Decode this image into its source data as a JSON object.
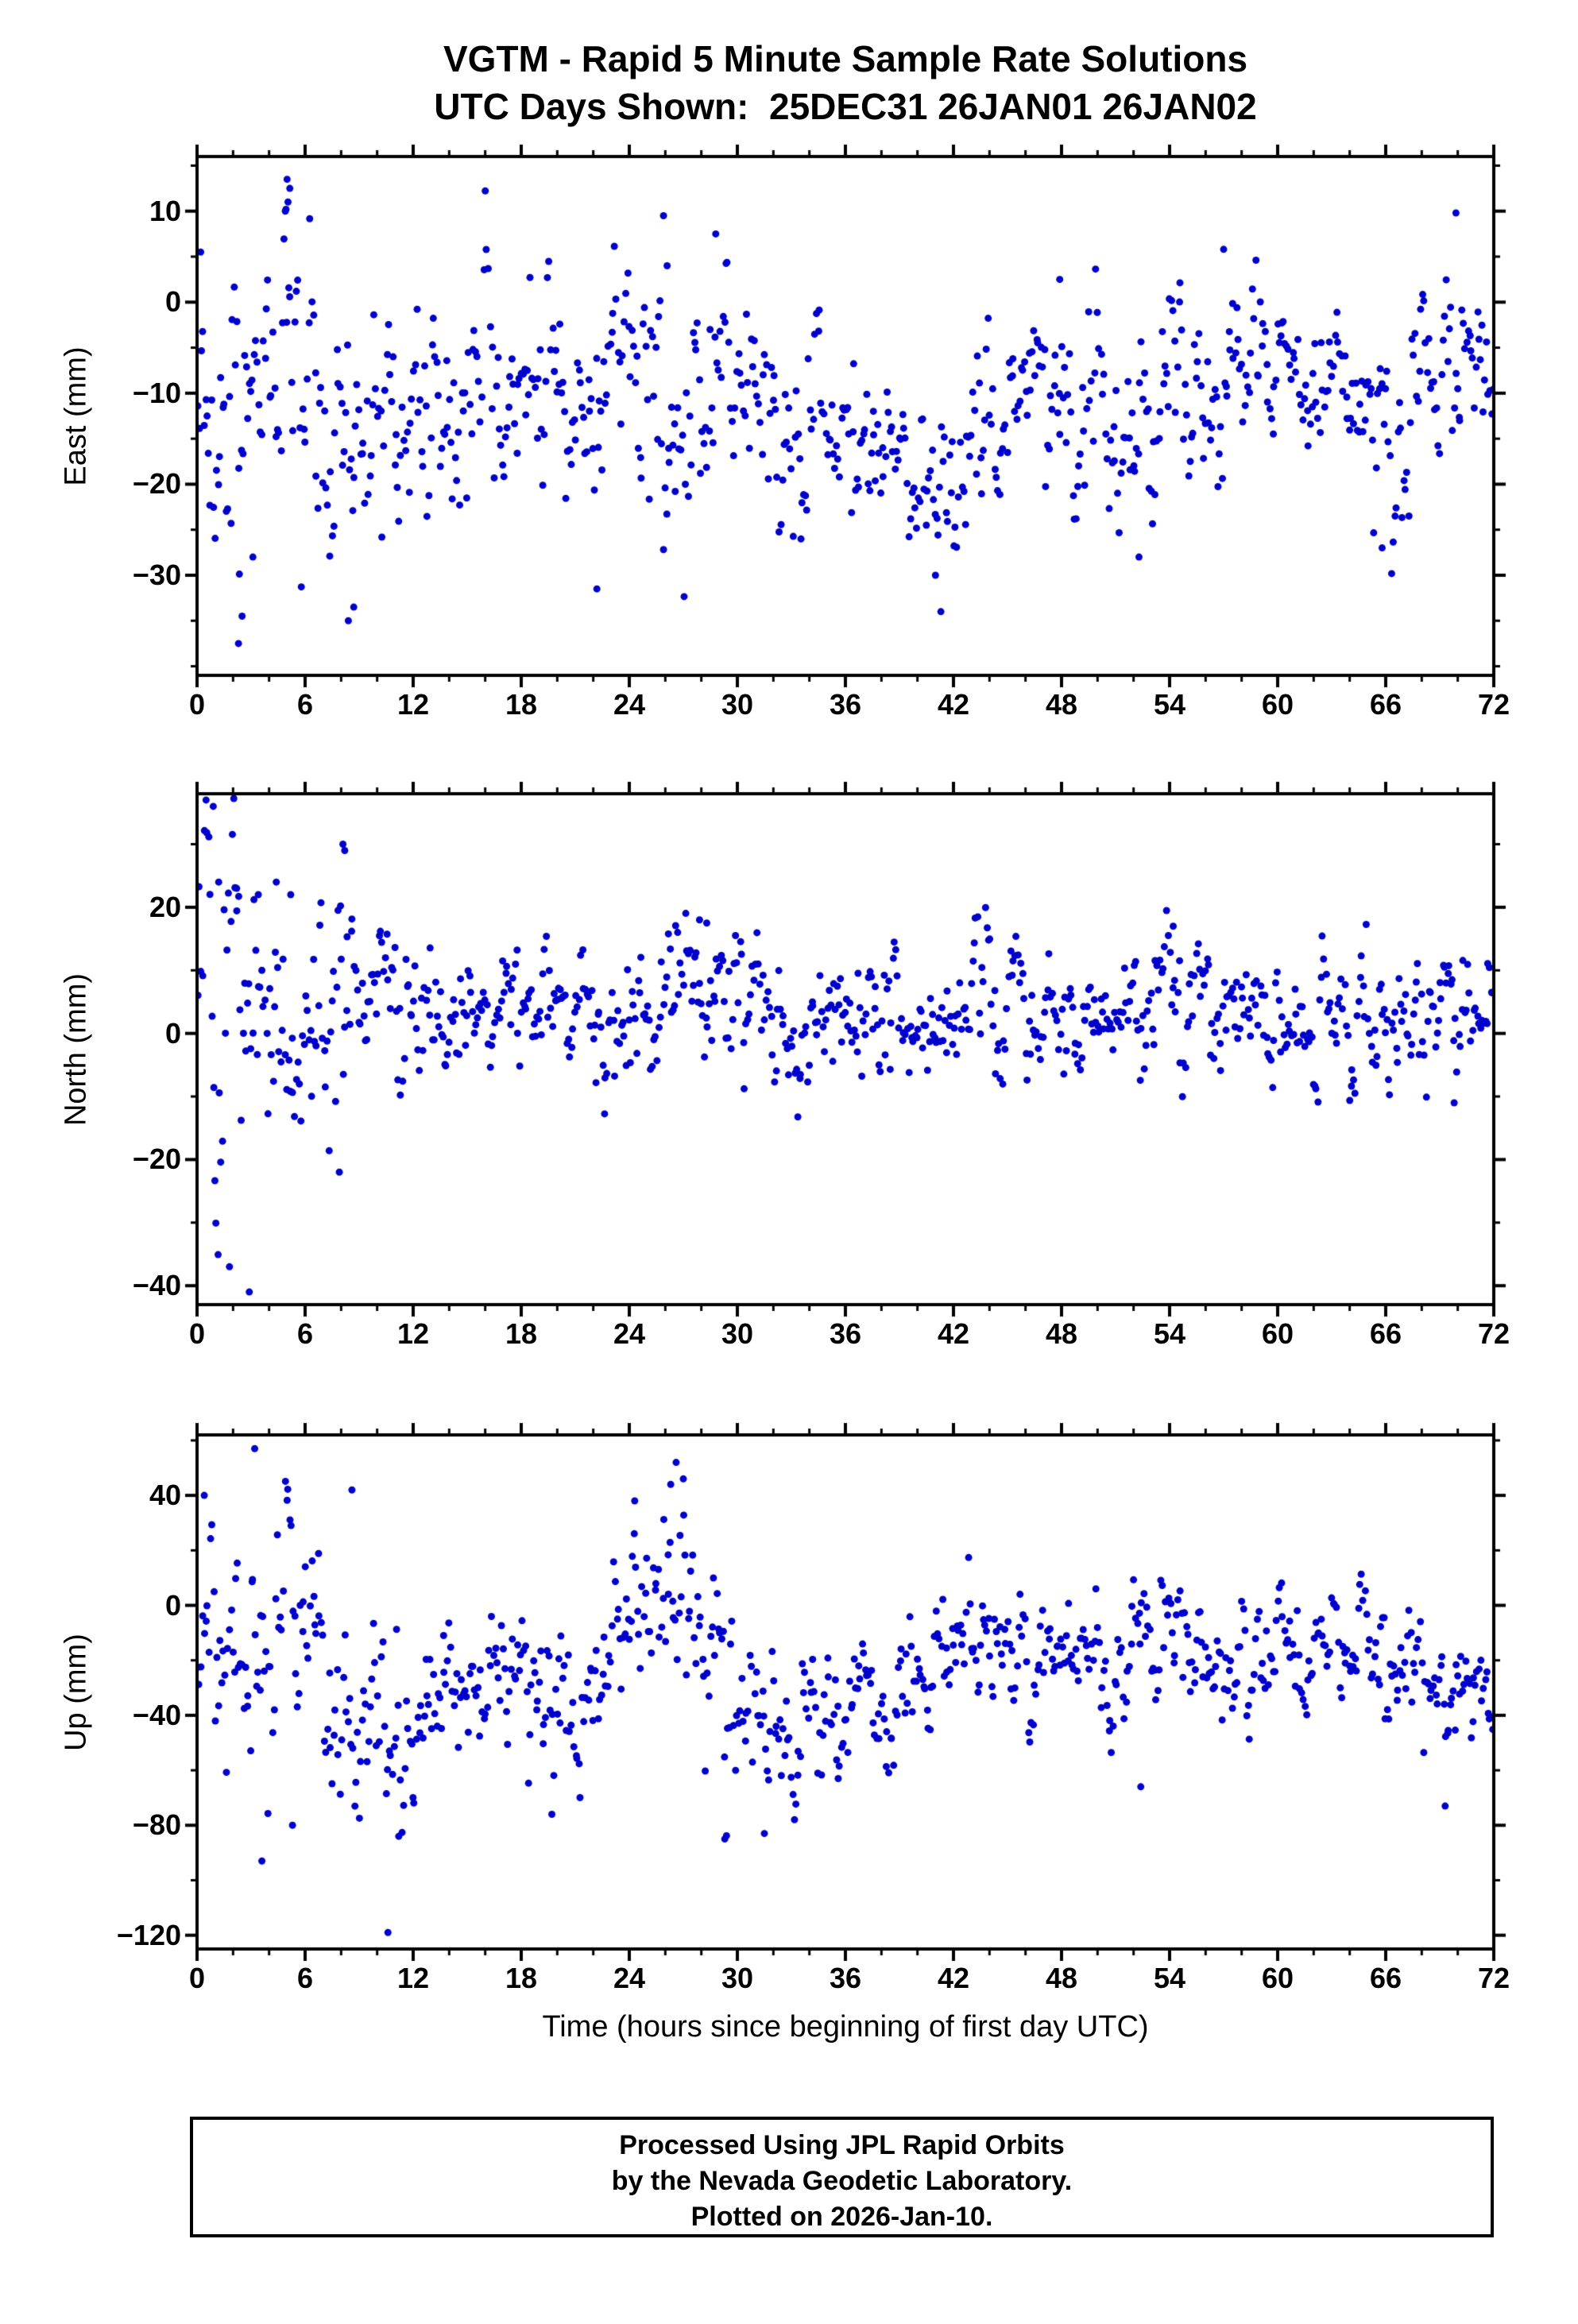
{
  "title": {
    "line1": "VGTM - Rapid 5 Minute Sample Rate Solutions",
    "line2": "UTC Days Shown:  25DEC31 26JAN01 26JAN02"
  },
  "x_axis": {
    "label": "Time (hours since beginning of first day UTC)",
    "ticks": [
      0,
      6,
      12,
      18,
      24,
      30,
      36,
      42,
      48,
      54,
      60,
      66,
      72
    ],
    "minor_step": 2,
    "range": [
      0,
      72
    ]
  },
  "marker": {
    "color": "#0000cc",
    "radius": 4.5
  },
  "footer": {
    "lines": [
      "Processed Using JPL Rapid Orbits",
      "by the Nevada Geodetic Laboratory.",
      "Plotted on 2026-Jan-10."
    ]
  },
  "chart_data": [
    {
      "type": "scatter",
      "ylabel": "East (mm)",
      "ylim": [
        -41,
        16
      ],
      "yticks": [
        10,
        0,
        -10,
        -20,
        -30
      ],
      "minor_step": 5,
      "n": 830,
      "seed": 11,
      "trend": {
        "x": [
          0,
          1.5,
          3,
          4.5,
          6,
          8,
          10,
          13,
          16,
          19,
          22,
          24.5,
          26,
          28,
          30,
          32,
          34,
          36,
          38,
          40,
          41.5,
          43,
          45,
          47,
          49,
          51,
          53,
          55,
          57,
          59,
          61,
          63,
          65,
          66.5,
          68,
          70,
          72
        ],
        "mean": [
          -6,
          -14,
          -16,
          -6,
          -8,
          -17,
          -15,
          -11,
          -12,
          -11,
          -12,
          -8,
          -9,
          -12,
          -10,
          -13,
          -13,
          -14,
          -15,
          -18,
          -22,
          -16,
          -13,
          -10,
          -13,
          -15,
          -14,
          -10,
          -8,
          -10,
          -8,
          -9,
          -12,
          -17,
          -10,
          -7,
          -11
        ],
        "std": [
          7,
          9,
          9,
          9,
          8,
          7,
          7,
          6,
          6,
          6,
          6,
          7,
          8,
          7,
          7,
          6,
          5,
          4,
          4,
          5,
          6,
          5,
          6,
          6,
          6,
          6,
          6,
          5,
          5,
          5,
          4,
          4,
          5,
          6,
          5,
          5,
          4
        ]
      },
      "outliers": [
        [
          0.2,
          5.5
        ],
        [
          5.0,
          13.5
        ],
        [
          5.15,
          12.5
        ],
        [
          5.05,
          11
        ],
        [
          4.9,
          10
        ],
        [
          2.3,
          -37.5
        ],
        [
          2.5,
          -34.5
        ],
        [
          3.1,
          -28
        ],
        [
          8.4,
          -35
        ],
        [
          8.7,
          -33.5
        ],
        [
          25.9,
          9.5
        ],
        [
          26.1,
          4
        ],
        [
          28.8,
          7.5
        ],
        [
          22.2,
          -31.5
        ],
        [
          41.3,
          -34
        ],
        [
          41.0,
          -30
        ],
        [
          47.9,
          2.5
        ],
        [
          52.3,
          -28
        ],
        [
          57.0,
          5.8
        ],
        [
          65.8,
          -27
        ],
        [
          69.9,
          9.8
        ]
      ]
    },
    {
      "type": "scatter",
      "ylabel": "North (mm)",
      "ylim": [
        -43,
        38
      ],
      "yticks": [
        20,
        0,
        -20,
        -40
      ],
      "minor_step": 10,
      "n": 830,
      "seed": 22,
      "trend": {
        "x": [
          0,
          1,
          2.5,
          4,
          6,
          8,
          10,
          13,
          16,
          19,
          22,
          25,
          27.5,
          30,
          33,
          36,
          39,
          42,
          45,
          48,
          51,
          54,
          57,
          60,
          63,
          66,
          69,
          72
        ],
        "mean": [
          3,
          6,
          0,
          2,
          3,
          2,
          4,
          5,
          2,
          1,
          1,
          6,
          8,
          4,
          3,
          3,
          4,
          5,
          5,
          3,
          2,
          6,
          4,
          4,
          5,
          4,
          4,
          3
        ],
        "std": [
          13,
          14,
          13,
          11,
          9,
          9,
          7,
          6,
          5,
          5,
          6,
          7,
          7,
          6,
          6,
          5,
          6,
          6,
          5,
          5,
          5,
          6,
          5,
          5,
          6,
          7,
          7,
          5
        ]
      },
      "outliers": [
        [
          0.5,
          37
        ],
        [
          0.9,
          36
        ],
        [
          1.8,
          -37
        ],
        [
          2.9,
          -41
        ],
        [
          1.2,
          24
        ],
        [
          2.2,
          23
        ],
        [
          3.4,
          22
        ],
        [
          4.4,
          24
        ],
        [
          5.2,
          22
        ],
        [
          7.9,
          -22
        ],
        [
          8.1,
          30
        ],
        [
          8.2,
          29
        ],
        [
          27.9,
          18
        ],
        [
          28.3,
          17.5
        ],
        [
          54.2,
          17
        ],
        [
          69.8,
          -11
        ]
      ]
    },
    {
      "type": "scatter",
      "ylabel": "Up (mm)",
      "ylim": [
        -125,
        62
      ],
      "yticks": [
        40,
        0,
        -40,
        -80,
        -120
      ],
      "minor_step": 20,
      "n": 820,
      "seed": 33,
      "trend": {
        "x": [
          0,
          2,
          4,
          6,
          8,
          10,
          12,
          14,
          16,
          18,
          19.5,
          21,
          23,
          25,
          26.5,
          28,
          29.5,
          31,
          33,
          35,
          37,
          39,
          41,
          43,
          45,
          47,
          49,
          51,
          53,
          55,
          57,
          59,
          61,
          63,
          65,
          67,
          69,
          71,
          72
        ],
        "mean": [
          -10,
          -18,
          -28,
          -22,
          -28,
          -35,
          -38,
          -33,
          -30,
          -18,
          -35,
          -42,
          -25,
          -5,
          2,
          -12,
          -28,
          -38,
          -42,
          -38,
          -33,
          -35,
          -28,
          -10,
          -8,
          -18,
          -20,
          -20,
          -18,
          -12,
          -15,
          -20,
          -24,
          -18,
          -16,
          -22,
          -28,
          -32,
          -30
        ],
        "std": [
          26,
          28,
          26,
          24,
          22,
          20,
          16,
          14,
          14,
          17,
          17,
          15,
          16,
          17,
          19,
          19,
          17,
          15,
          13,
          12,
          11,
          12,
          12,
          10,
          11,
          12,
          12,
          13,
          12,
          12,
          13,
          11,
          10,
          10,
          10,
          11,
          11,
          9,
          9
        ]
      },
      "outliers": [
        [
          0.4,
          40
        ],
        [
          3.2,
          57
        ],
        [
          3.6,
          -93
        ],
        [
          5.3,
          -80
        ],
        [
          8.6,
          42
        ],
        [
          10.6,
          -119
        ],
        [
          11.2,
          -84
        ],
        [
          19.7,
          -76
        ],
        [
          24.3,
          38
        ],
        [
          26.3,
          44
        ],
        [
          26.6,
          52
        ],
        [
          27.0,
          46
        ],
        [
          29.3,
          -85
        ],
        [
          31.5,
          -83
        ],
        [
          35.6,
          -63
        ],
        [
          52.4,
          -66
        ],
        [
          69.3,
          -73
        ]
      ]
    }
  ]
}
